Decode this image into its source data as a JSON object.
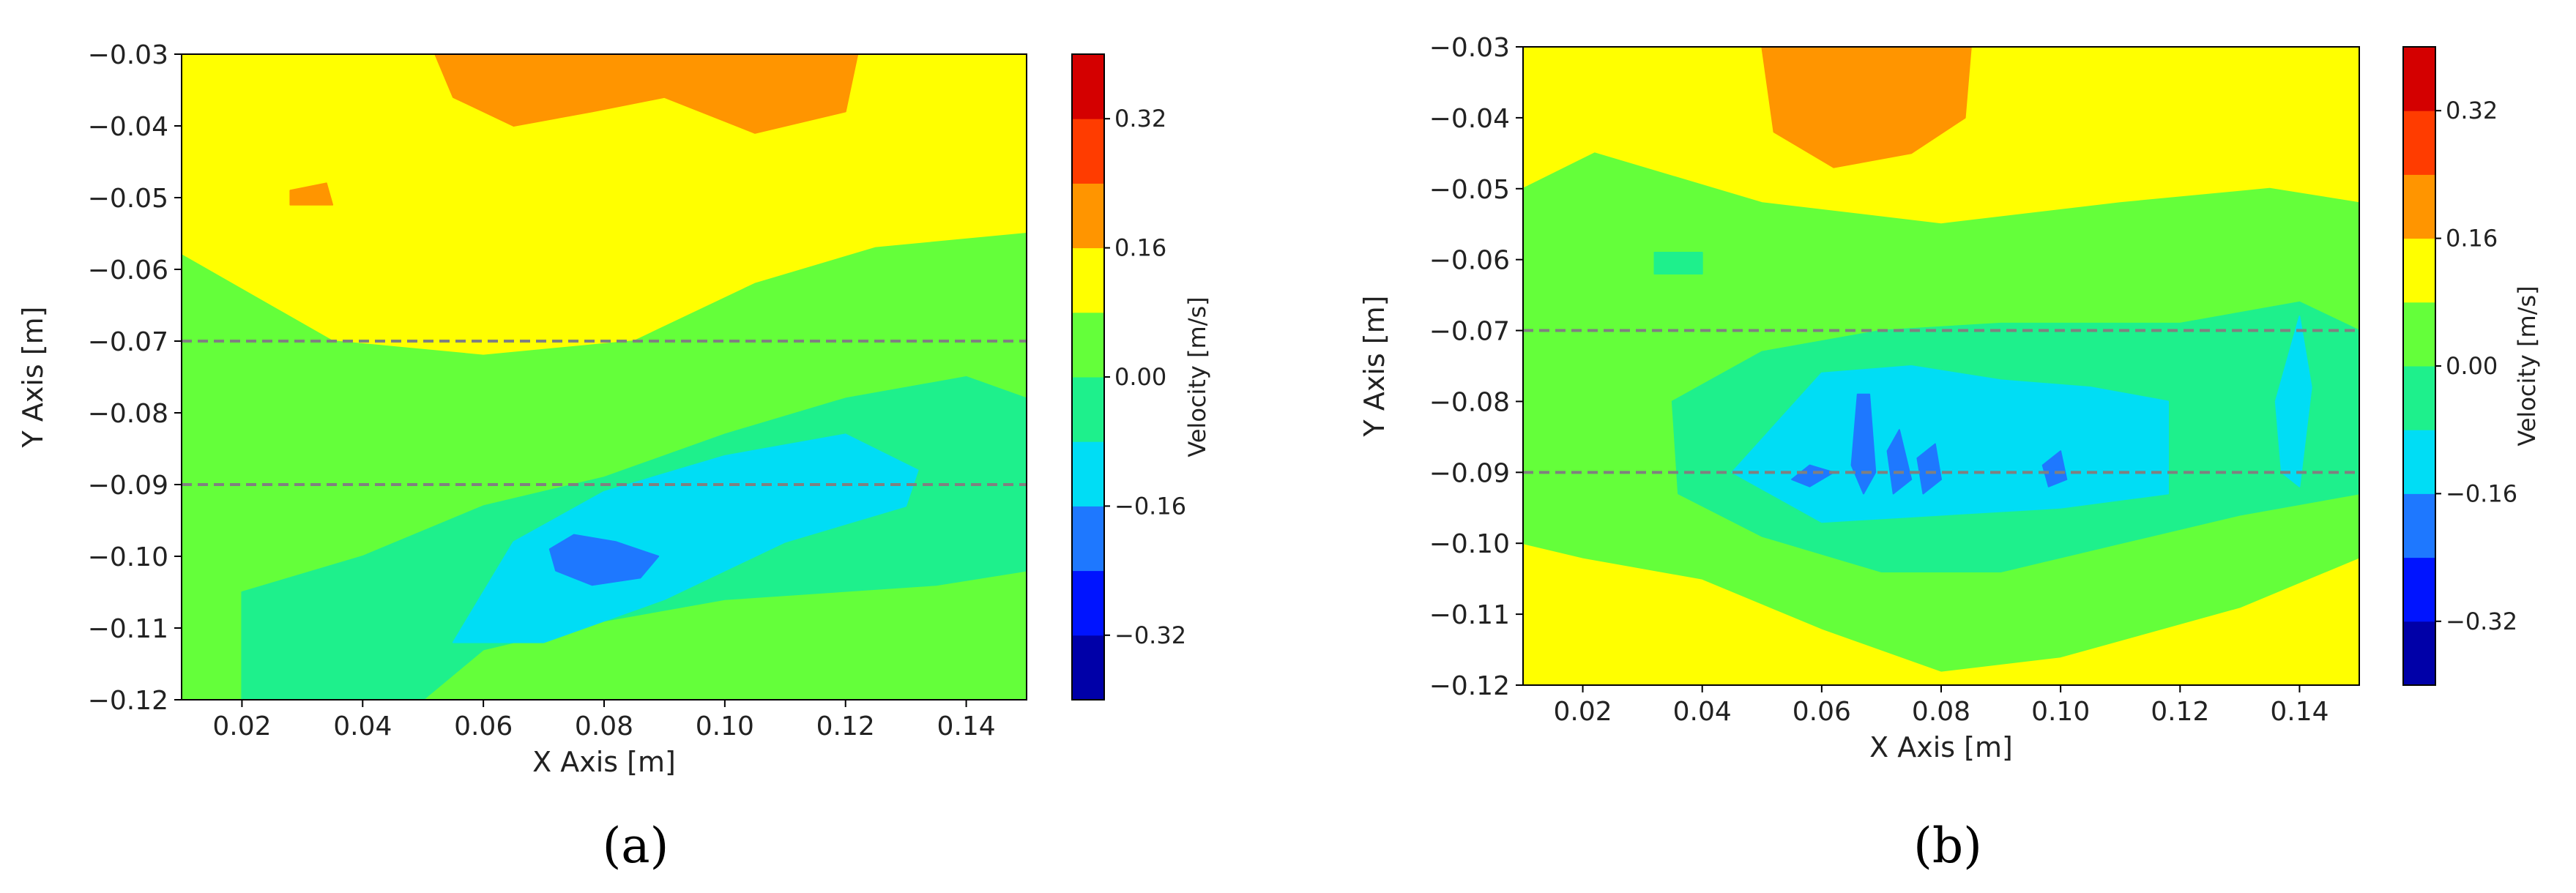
{
  "chart_data": [
    {
      "type": "heatmap",
      "panel_label": "(a)",
      "xlabel": "X Axis [m]",
      "ylabel": "Y Axis [m]",
      "xlim": [
        0.01,
        0.15
      ],
      "ylim": [
        -0.12,
        -0.03
      ],
      "xticks": [
        0.02,
        0.04,
        0.06,
        0.08,
        0.1,
        0.12,
        0.14
      ],
      "xtick_labels": [
        "0.02",
        "0.04",
        "0.06",
        "0.08",
        "0.10",
        "0.12",
        "0.14"
      ],
      "yticks": [
        -0.12,
        -0.11,
        -0.1,
        -0.09,
        -0.08,
        -0.07,
        -0.06,
        -0.05,
        -0.04,
        -0.03
      ],
      "ytick_labels": [
        "−0.12",
        "−0.11",
        "−0.10",
        "−0.09",
        "−0.08",
        "−0.07",
        "−0.06",
        "−0.05",
        "−0.04",
        "−0.03"
      ],
      "reference_lines_y": [
        -0.07,
        -0.09
      ],
      "colorbar": {
        "label": "Velocity [m/s]",
        "range": [
          -0.4,
          0.4
        ],
        "ticks": [
          -0.32,
          -0.16,
          0.0,
          0.16,
          0.32
        ],
        "tick_labels": [
          "−0.32",
          "−0.16",
          "0.00",
          "0.16",
          "0.32"
        ],
        "levels": [
          -0.4,
          -0.32,
          -0.24,
          -0.16,
          -0.08,
          0.0,
          0.08,
          0.16,
          0.24,
          0.32,
          0.4
        ],
        "colors": [
          "#0000a8",
          "#0014ff",
          "#1e78ff",
          "#00ddf5",
          "#1ef08c",
          "#64ff3a",
          "#ffff00",
          "#ff9500",
          "#ff3c00",
          "#d40000"
        ]
      },
      "regions": [
        {
          "level": 0.08,
          "points": [
            [
              0.01,
              -0.03
            ],
            [
              0.15,
              -0.03
            ],
            [
              0.15,
              -0.12
            ],
            [
              0.01,
              -0.12
            ]
          ]
        },
        {
          "level": 0.0,
          "points": [
            [
              0.01,
              -0.058
            ],
            [
              0.035,
              -0.07
            ],
            [
              0.06,
              -0.072
            ],
            [
              0.085,
              -0.07
            ],
            [
              0.105,
              -0.062
            ],
            [
              0.125,
              -0.057
            ],
            [
              0.15,
              -0.055
            ],
            [
              0.15,
              -0.12
            ],
            [
              0.01,
              -0.12
            ]
          ]
        },
        {
          "level": -0.08,
          "points": [
            [
              0.02,
              -0.12
            ],
            [
              0.02,
              -0.105
            ],
            [
              0.04,
              -0.1
            ],
            [
              0.06,
              -0.093
            ],
            [
              0.08,
              -0.089
            ],
            [
              0.1,
              -0.083
            ],
            [
              0.12,
              -0.078
            ],
            [
              0.14,
              -0.075
            ],
            [
              0.15,
              -0.078
            ],
            [
              0.15,
              -0.102
            ],
            [
              0.135,
              -0.104
            ],
            [
              0.1,
              -0.106
            ],
            [
              0.08,
              -0.109
            ],
            [
              0.06,
              -0.113
            ],
            [
              0.05,
              -0.12
            ]
          ]
        },
        {
          "level": -0.16,
          "points": [
            [
              0.055,
              -0.112
            ],
            [
              0.065,
              -0.098
            ],
            [
              0.08,
              -0.091
            ],
            [
              0.1,
              -0.086
            ],
            [
              0.12,
              -0.083
            ],
            [
              0.132,
              -0.088
            ],
            [
              0.13,
              -0.093
            ],
            [
              0.11,
              -0.098
            ],
            [
              0.09,
              -0.106
            ],
            [
              0.07,
              -0.112
            ]
          ]
        },
        {
          "level": -0.24,
          "points": [
            [
              0.071,
              -0.099
            ],
            [
              0.075,
              -0.097
            ],
            [
              0.082,
              -0.098
            ],
            [
              0.089,
              -0.1
            ],
            [
              0.086,
              -0.103
            ],
            [
              0.078,
              -0.104
            ],
            [
              0.072,
              -0.102
            ]
          ]
        },
        {
          "level": 0.16,
          "points": [
            [
              0.052,
              -0.03
            ],
            [
              0.122,
              -0.03
            ],
            [
              0.12,
              -0.038
            ],
            [
              0.105,
              -0.041
            ],
            [
              0.09,
              -0.036
            ],
            [
              0.078,
              -0.038
            ],
            [
              0.065,
              -0.04
            ],
            [
              0.055,
              -0.036
            ]
          ]
        },
        {
          "level": 0.16,
          "points": [
            [
              0.028,
              -0.049
            ],
            [
              0.034,
              -0.048
            ],
            [
              0.035,
              -0.051
            ],
            [
              0.028,
              -0.051
            ]
          ]
        }
      ]
    },
    {
      "type": "heatmap",
      "panel_label": "(b)",
      "xlabel": "X Axis [m]",
      "ylabel": "Y Axis [m]",
      "xlim": [
        0.01,
        0.15
      ],
      "ylim": [
        -0.12,
        -0.03
      ],
      "xticks": [
        0.02,
        0.04,
        0.06,
        0.08,
        0.1,
        0.12,
        0.14
      ],
      "xtick_labels": [
        "0.02",
        "0.04",
        "0.06",
        "0.08",
        "0.10",
        "0.12",
        "0.14"
      ],
      "yticks": [
        -0.12,
        -0.11,
        -0.1,
        -0.09,
        -0.08,
        -0.07,
        -0.06,
        -0.05,
        -0.04,
        -0.03
      ],
      "ytick_labels": [
        "−0.12",
        "−0.11",
        "−0.10",
        "−0.09",
        "−0.08",
        "−0.07",
        "−0.06",
        "−0.05",
        "−0.04",
        "−0.03"
      ],
      "reference_lines_y": [
        -0.07,
        -0.09
      ],
      "colorbar": {
        "label": "Velocity [m/s]",
        "range": [
          -0.4,
          0.4
        ],
        "ticks": [
          -0.32,
          -0.16,
          0.0,
          0.16,
          0.32
        ],
        "tick_labels": [
          "−0.32",
          "−0.16",
          "0.00",
          "0.16",
          "0.32"
        ],
        "levels": [
          -0.4,
          -0.32,
          -0.24,
          -0.16,
          -0.08,
          0.0,
          0.08,
          0.16,
          0.24,
          0.32,
          0.4
        ],
        "colors": [
          "#0000a8",
          "#0014ff",
          "#1e78ff",
          "#00ddf5",
          "#1ef08c",
          "#64ff3a",
          "#ffff00",
          "#ff9500",
          "#ff3c00",
          "#d40000"
        ]
      },
      "regions": [
        {
          "level": 0.08,
          "points": [
            [
              0.01,
              -0.03
            ],
            [
              0.15,
              -0.03
            ],
            [
              0.15,
              -0.12
            ],
            [
              0.01,
              -0.12
            ]
          ]
        },
        {
          "level": 0.0,
          "points": [
            [
              0.022,
              -0.045
            ],
            [
              0.05,
              -0.052
            ],
            [
              0.08,
              -0.055
            ],
            [
              0.11,
              -0.052
            ],
            [
              0.135,
              -0.05
            ],
            [
              0.15,
              -0.052
            ],
            [
              0.15,
              -0.102
            ],
            [
              0.13,
              -0.109
            ],
            [
              0.1,
              -0.116
            ],
            [
              0.08,
              -0.118
            ],
            [
              0.06,
              -0.112
            ],
            [
              0.04,
              -0.105
            ],
            [
              0.02,
              -0.102
            ],
            [
              0.01,
              -0.1
            ],
            [
              0.01,
              -0.05
            ]
          ]
        },
        {
          "level": -0.08,
          "points": [
            [
              0.035,
              -0.08
            ],
            [
              0.05,
              -0.073
            ],
            [
              0.07,
              -0.07
            ],
            [
              0.09,
              -0.069
            ],
            [
              0.12,
              -0.069
            ],
            [
              0.14,
              -0.066
            ],
            [
              0.15,
              -0.07
            ],
            [
              0.15,
              -0.093
            ],
            [
              0.13,
              -0.096
            ],
            [
              0.11,
              -0.1
            ],
            [
              0.09,
              -0.104
            ],
            [
              0.07,
              -0.104
            ],
            [
              0.05,
              -0.099
            ],
            [
              0.036,
              -0.093
            ]
          ]
        },
        {
          "level": -0.08,
          "points": [
            [
              0.032,
              -0.059
            ],
            [
              0.04,
              -0.059
            ],
            [
              0.04,
              -0.062
            ],
            [
              0.032,
              -0.062
            ]
          ]
        },
        {
          "level": -0.16,
          "points": [
            [
              0.045,
              -0.09
            ],
            [
              0.06,
              -0.076
            ],
            [
              0.075,
              -0.075
            ],
            [
              0.09,
              -0.077
            ],
            [
              0.105,
              -0.078
            ],
            [
              0.118,
              -0.08
            ],
            [
              0.118,
              -0.093
            ],
            [
              0.1,
              -0.095
            ],
            [
              0.08,
              -0.096
            ],
            [
              0.06,
              -0.097
            ]
          ]
        },
        {
          "level": -0.16,
          "points": [
            [
              0.136,
              -0.08
            ],
            [
              0.14,
              -0.068
            ],
            [
              0.142,
              -0.078
            ],
            [
              0.14,
              -0.092
            ],
            [
              0.137,
              -0.09
            ]
          ]
        },
        {
          "level": -0.24,
          "points": [
            [
              0.055,
              -0.091
            ],
            [
              0.058,
              -0.089
            ],
            [
              0.062,
              -0.09
            ],
            [
              0.058,
              -0.092
            ]
          ]
        },
        {
          "level": -0.24,
          "points": [
            [
              0.066,
              -0.079
            ],
            [
              0.068,
              -0.079
            ],
            [
              0.069,
              -0.09
            ],
            [
              0.067,
              -0.093
            ],
            [
              0.065,
              -0.089
            ]
          ]
        },
        {
          "level": -0.24,
          "points": [
            [
              0.071,
              -0.087
            ],
            [
              0.073,
              -0.084
            ],
            [
              0.075,
              -0.091
            ],
            [
              0.072,
              -0.093
            ]
          ]
        },
        {
          "level": -0.24,
          "points": [
            [
              0.076,
              -0.088
            ],
            [
              0.079,
              -0.086
            ],
            [
              0.08,
              -0.091
            ],
            [
              0.077,
              -0.093
            ]
          ]
        },
        {
          "level": -0.24,
          "points": [
            [
              0.097,
              -0.089
            ],
            [
              0.1,
              -0.087
            ],
            [
              0.101,
              -0.091
            ],
            [
              0.098,
              -0.092
            ]
          ]
        },
        {
          "level": 0.16,
          "points": [
            [
              0.05,
              -0.03
            ],
            [
              0.085,
              -0.03
            ],
            [
              0.084,
              -0.04
            ],
            [
              0.075,
              -0.045
            ],
            [
              0.062,
              -0.047
            ],
            [
              0.052,
              -0.042
            ]
          ]
        }
      ]
    }
  ]
}
